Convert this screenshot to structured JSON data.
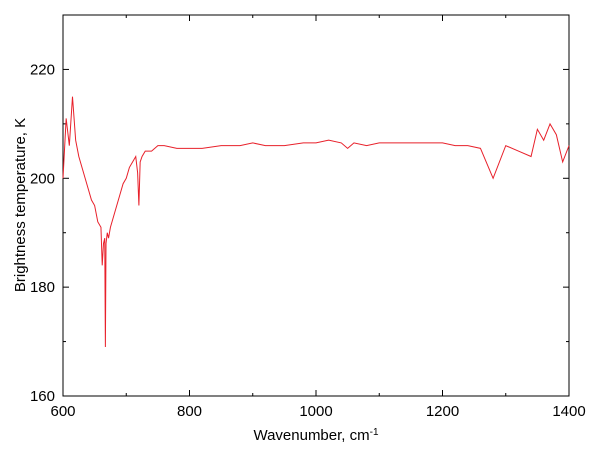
{
  "chart_data": {
    "type": "line",
    "title": "",
    "xlabel": "Wavenumber, cm",
    "xlabel_sup": "-1",
    "ylabel": "Brightness temperature, K",
    "xlim": [
      600,
      1400
    ],
    "ylim": [
      160,
      230
    ],
    "x_ticks": [
      600,
      800,
      1000,
      1200,
      1400
    ],
    "y_ticks": [
      160,
      180,
      200,
      220
    ],
    "grid": false,
    "legend": "none",
    "series": [
      {
        "color": "#e8202a",
        "x": [
          600,
          605,
          610,
          615,
          620,
          625,
          630,
          635,
          640,
          645,
          650,
          655,
          660,
          662,
          664,
          666,
          667,
          668,
          670,
          672,
          675,
          680,
          685,
          690,
          695,
          700,
          705,
          710,
          715,
          718,
          720,
          722,
          725,
          730,
          735,
          740,
          750,
          760,
          780,
          800,
          820,
          850,
          880,
          900,
          920,
          950,
          980,
          1000,
          1020,
          1040,
          1050,
          1060,
          1080,
          1100,
          1120,
          1140,
          1160,
          1180,
          1200,
          1220,
          1240,
          1260,
          1280,
          1300,
          1320,
          1340,
          1350,
          1360,
          1370,
          1380,
          1390,
          1400
        ],
        "y": [
          200,
          211,
          206,
          215,
          207,
          204,
          202,
          200,
          198,
          196,
          195,
          192,
          191,
          184,
          188,
          189,
          169,
          188,
          190,
          189,
          191,
          193,
          195,
          197,
          199,
          200,
          202,
          203,
          204,
          201,
          195,
          203,
          204,
          205,
          205,
          205,
          206,
          206,
          205.5,
          205.5,
          205.5,
          206,
          206,
          206.5,
          206,
          206,
          206.5,
          206.5,
          207,
          206.5,
          205.5,
          206.5,
          206,
          206.5,
          206.5,
          206.5,
          206.5,
          206.5,
          206.5,
          206,
          206,
          205.5,
          200,
          206,
          205,
          204,
          209,
          207,
          210,
          208,
          203,
          206
        ]
      }
    ]
  }
}
